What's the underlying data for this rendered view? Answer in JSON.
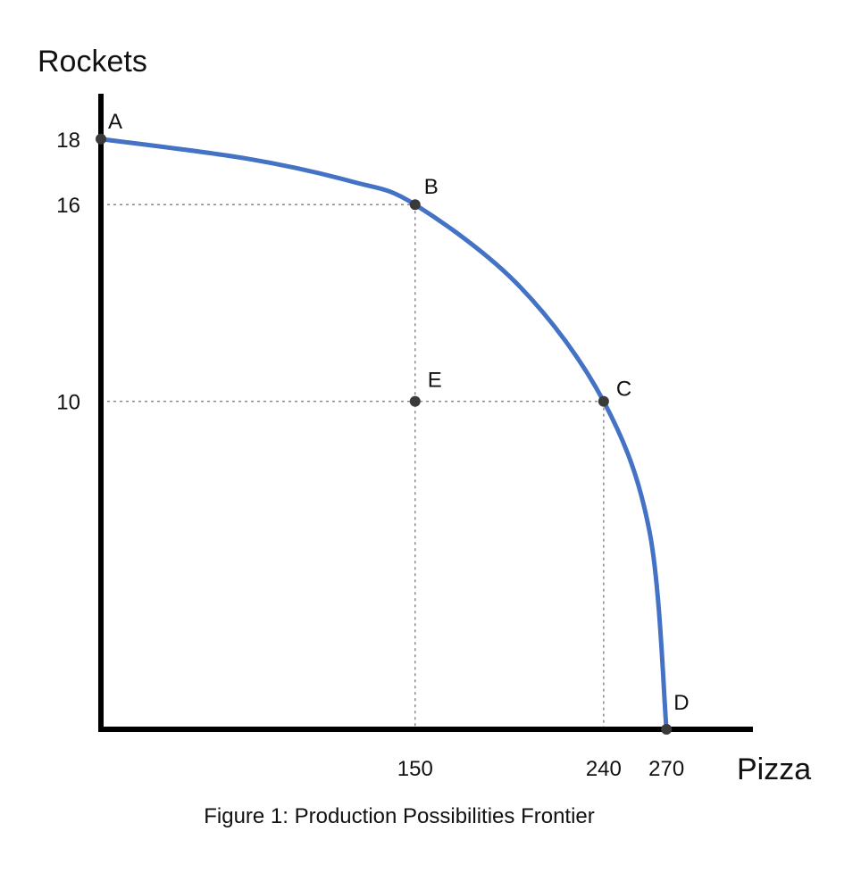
{
  "chart_data": {
    "type": "line",
    "title": "",
    "caption": "Figure 1: Production Possibilities Frontier",
    "xlabel": "Pizza",
    "ylabel": "Rockets",
    "x_ticks": [
      150,
      240,
      270
    ],
    "y_ticks": [
      10,
      16,
      18
    ],
    "xlim": [
      0,
      310
    ],
    "ylim": [
      0,
      19.3
    ],
    "grid": false,
    "points": [
      {
        "label": "A",
        "x": 0,
        "y": 18
      },
      {
        "label": "B",
        "x": 150,
        "y": 16
      },
      {
        "label": "C",
        "x": 240,
        "y": 10
      },
      {
        "label": "D",
        "x": 270,
        "y": 0
      },
      {
        "label": "E",
        "x": 150,
        "y": 10
      }
    ],
    "series": [
      {
        "values": [
          {
            "x": 0,
            "y": 18
          },
          {
            "x": 70,
            "y": 17.4
          },
          {
            "x": 120,
            "y": 16.7
          },
          {
            "x": 150,
            "y": 16
          },
          {
            "x": 200,
            "y": 13.5
          },
          {
            "x": 240,
            "y": 10
          },
          {
            "x": 262,
            "y": 6
          },
          {
            "x": 270,
            "y": 0
          }
        ]
      }
    ],
    "frontier_points": [
      "A",
      "B",
      "C",
      "D"
    ],
    "guides": [
      {
        "from": "B",
        "to_axes": [
          "x",
          "y"
        ]
      },
      {
        "from": "C",
        "to_axes": [
          "x",
          "y"
        ]
      }
    ],
    "colors": {
      "frontier": "#4472c4",
      "point": "#3a3a3a",
      "axis": "#000000",
      "guide": "#8a8a8a",
      "text": "#111111"
    }
  }
}
